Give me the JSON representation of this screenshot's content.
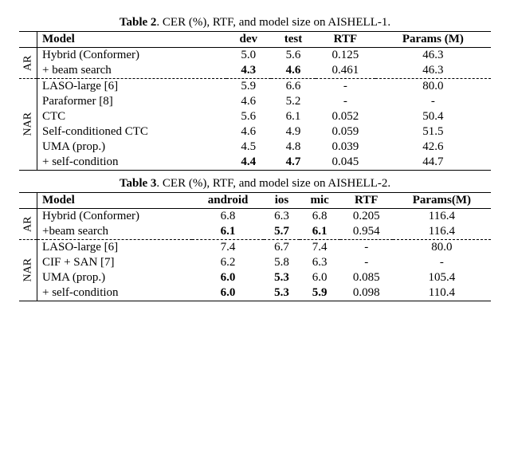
{
  "table2": {
    "caption_label": "Table 2",
    "caption_text": ". CER (%), RTF, and model size on AISHELL-1.",
    "group_labels": [
      "AR",
      "NAR"
    ],
    "columns": [
      "Model",
      "dev",
      "test",
      "RTF",
      "Params (M)"
    ],
    "groups": [
      {
        "rows": [
          {
            "model": "Hybrid (Conformer)",
            "dev": "5.0",
            "test": "5.6",
            "rtf": "0.125",
            "params": "46.3",
            "bold": []
          },
          {
            "model": " + beam search",
            "dev": "4.3",
            "test": "4.6",
            "rtf": "0.461",
            "params": "46.3",
            "bold": [
              "dev",
              "test"
            ]
          }
        ]
      },
      {
        "rows": [
          {
            "model": "LASO-large [6]",
            "dev": "5.9",
            "test": "6.6",
            "rtf": "-",
            "params": "80.0",
            "bold": []
          },
          {
            "model": "Paraformer [8]",
            "dev": "4.6",
            "test": "5.2",
            "rtf": "-",
            "params": "-",
            "bold": []
          },
          {
            "model": "CTC",
            "dev": "5.6",
            "test": "6.1",
            "rtf": "0.052",
            "params": "50.4",
            "bold": []
          },
          {
            "model": "Self-conditioned CTC",
            "dev": "4.6",
            "test": "4.9",
            "rtf": "0.059",
            "params": "51.5",
            "bold": []
          },
          {
            "model": "UMA (prop.)",
            "dev": "4.5",
            "test": "4.8",
            "rtf": "0.039",
            "params": "42.6",
            "bold": []
          },
          {
            "model": " + self-condition",
            "dev": "4.4",
            "test": "4.7",
            "rtf": "0.045",
            "params": "44.7",
            "bold": [
              "dev",
              "test"
            ]
          }
        ]
      }
    ]
  },
  "table3": {
    "caption_label": "Table 3",
    "caption_text": ". CER (%), RTF, and model size on AISHELL-2.",
    "group_labels": [
      "AR",
      "NAR"
    ],
    "columns": [
      "Model",
      "android",
      "ios",
      "mic",
      "RTF",
      "Params(M)"
    ],
    "groups": [
      {
        "rows": [
          {
            "model": "Hybrid (Conformer)",
            "android": "6.8",
            "ios": "6.3",
            "mic": "6.8",
            "rtf": "0.205",
            "params": "116.4",
            "bold": []
          },
          {
            "model": "+beam search",
            "android": "6.1",
            "ios": "5.7",
            "mic": "6.1",
            "rtf": "0.954",
            "params": "116.4",
            "bold": [
              "android",
              "ios",
              "mic"
            ]
          }
        ]
      },
      {
        "rows": [
          {
            "model": "LASO-large [6]",
            "android": "7.4",
            "ios": "6.7",
            "mic": "7.4",
            "rtf": "-",
            "params": "80.0",
            "bold": []
          },
          {
            "model": "CIF + SAN [7]",
            "android": "6.2",
            "ios": "5.8",
            "mic": "6.3",
            "rtf": "-",
            "params": "-",
            "bold": []
          },
          {
            "model": "UMA (prop.)",
            "android": "6.0",
            "ios": "5.3",
            "mic": "6.0",
            "rtf": "0.085",
            "params": "105.4",
            "bold": [
              "android",
              "ios"
            ]
          },
          {
            "model": " + self-condition",
            "android": "6.0",
            "ios": "5.3",
            "mic": "5.9",
            "rtf": "0.098",
            "params": "110.4",
            "bold": [
              "android",
              "ios",
              "mic"
            ]
          }
        ]
      }
    ]
  }
}
